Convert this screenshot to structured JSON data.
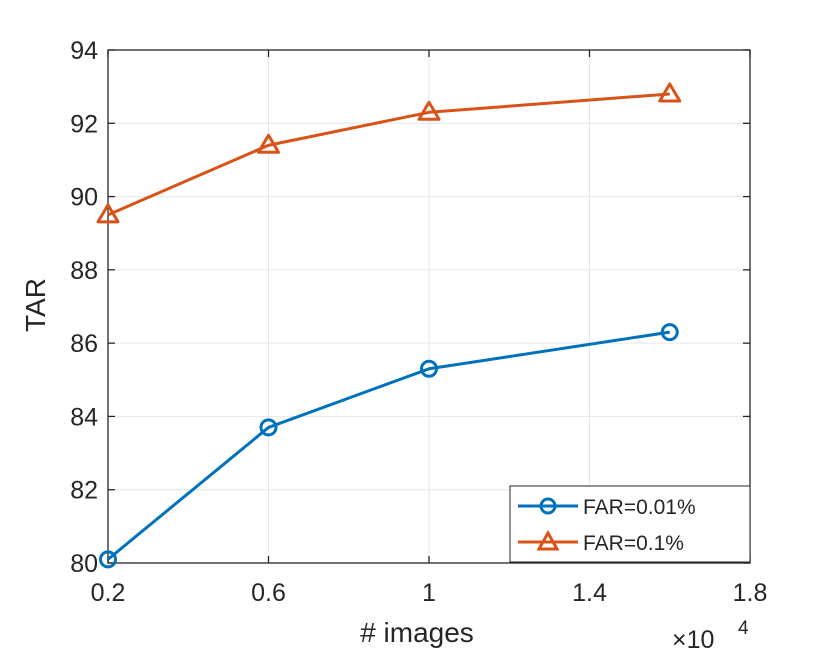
{
  "chart_data": {
    "type": "line",
    "xlabel": "# images",
    "ylabel": "TAR",
    "x_multiplier": "×10",
    "x_multiplier_exponent": "4",
    "xlim": [
      0.2,
      1.8
    ],
    "ylim": [
      80,
      94
    ],
    "xticks": [
      0.2,
      0.6,
      1,
      1.4,
      1.8
    ],
    "xtick_labels": [
      "0.2",
      "0.6",
      "1",
      "1.4",
      "1.8"
    ],
    "yticks": [
      80,
      82,
      84,
      86,
      88,
      90,
      92,
      94
    ],
    "ytick_labels": [
      "80",
      "82",
      "84",
      "86",
      "88",
      "90",
      "92",
      "94"
    ],
    "grid": true,
    "legend_position": "bottom-right",
    "x": [
      0.2,
      0.6,
      1,
      1.6
    ],
    "series": [
      {
        "name": "FAR=0.01%",
        "marker": "circle",
        "color": "#0072BD",
        "values": [
          80.1,
          83.7,
          85.3,
          86.3
        ]
      },
      {
        "name": "FAR=0.1%",
        "marker": "triangle",
        "color": "#D95319",
        "values": [
          89.5,
          91.4,
          92.3,
          92.8
        ]
      }
    ]
  }
}
